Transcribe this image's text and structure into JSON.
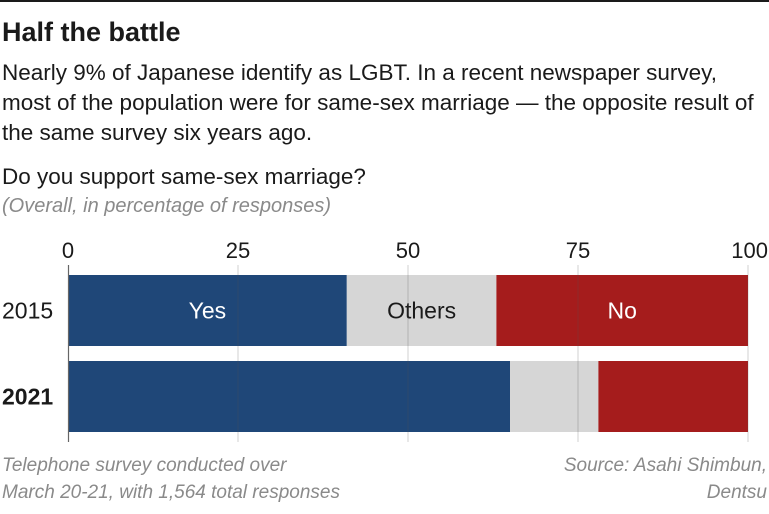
{
  "header": {
    "title": "Half the battle",
    "subtitle": "Nearly 9% of Japanese identify as LGBT. In a recent newspaper survey, most of the population were for same-sex marriage — the opposite result of the same survey six years ago."
  },
  "question": "Do you support same-sex marriage?",
  "unit_note": "(Overall, in percentage of responses)",
  "footnote": {
    "line1": "Telephone survey conducted over",
    "line2": "March 20-21, with 1,564 total responses"
  },
  "source": {
    "line1": "Source: Asahi Shimbun,",
    "line2": "Dentsu"
  },
  "chart_data": {
    "type": "bar",
    "orientation": "horizontal",
    "stacked": true,
    "title": "Do you support same-sex marriage?",
    "subtitle": "(Overall, in percentage of responses)",
    "categories": [
      "2015",
      "2021"
    ],
    "emphasized_category": "2021",
    "xlim": [
      0,
      100
    ],
    "ticks": [
      0,
      25,
      50,
      75,
      100
    ],
    "grid": true,
    "legend": "none",
    "series": [
      {
        "name": "Yes",
        "color": "#1f4778",
        "values": [
          41,
          65
        ],
        "label_category": "2015"
      },
      {
        "name": "Others",
        "color": "#d6d6d6",
        "values": [
          22,
          13
        ],
        "label_category": "2015"
      },
      {
        "name": "No",
        "color": "#a51c1c",
        "values": [
          37,
          22
        ],
        "label_category": "2015"
      }
    ]
  }
}
